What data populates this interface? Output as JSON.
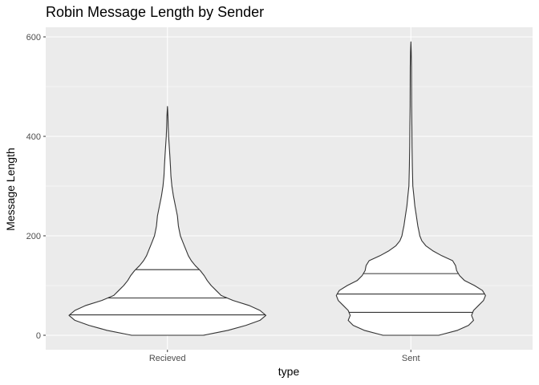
{
  "chart_data": {
    "type": "violin",
    "title": "Robin Message Length by Sender",
    "xlabel": "type",
    "ylabel": "Message Length",
    "categories": [
      "Recieved",
      "Sent"
    ],
    "ylim": [
      -30,
      625
    ],
    "yticks": [
      0,
      200,
      400,
      600
    ],
    "grid": true,
    "quantiles_drawn": [
      0.25,
      0.5,
      0.75
    ],
    "series": [
      {
        "category": "Recieved",
        "min": 0,
        "max": 460,
        "q1": 41,
        "median": 75,
        "q3": 132,
        "density": [
          [
            0,
            0.36
          ],
          [
            10,
            0.61
          ],
          [
            20,
            0.79
          ],
          [
            30,
            0.93
          ],
          [
            40,
            0.99
          ],
          [
            50,
            0.93
          ],
          [
            60,
            0.82
          ],
          [
            70,
            0.66
          ],
          [
            80,
            0.54
          ],
          [
            90,
            0.49
          ],
          [
            100,
            0.44
          ],
          [
            110,
            0.4
          ],
          [
            120,
            0.37
          ],
          [
            130,
            0.33
          ],
          [
            140,
            0.28
          ],
          [
            150,
            0.24
          ],
          [
            160,
            0.21
          ],
          [
            170,
            0.19
          ],
          [
            180,
            0.17
          ],
          [
            190,
            0.15
          ],
          [
            200,
            0.13
          ],
          [
            210,
            0.12
          ],
          [
            220,
            0.11
          ],
          [
            240,
            0.1
          ],
          [
            260,
            0.08
          ],
          [
            280,
            0.06
          ],
          [
            300,
            0.045
          ],
          [
            320,
            0.035
          ],
          [
            340,
            0.03
          ],
          [
            360,
            0.025
          ],
          [
            380,
            0.018
          ],
          [
            400,
            0.012
          ],
          [
            420,
            0.008
          ],
          [
            440,
            0.005
          ],
          [
            460,
            0.0
          ]
        ]
      },
      {
        "category": "Sent",
        "min": 0,
        "max": 590,
        "q1": 46,
        "median": 83,
        "q3": 124,
        "density": [
          [
            0,
            0.28
          ],
          [
            10,
            0.47
          ],
          [
            20,
            0.58
          ],
          [
            30,
            0.63
          ],
          [
            40,
            0.61
          ],
          [
            50,
            0.63
          ],
          [
            60,
            0.68
          ],
          [
            70,
            0.73
          ],
          [
            80,
            0.75
          ],
          [
            90,
            0.72
          ],
          [
            100,
            0.64
          ],
          [
            110,
            0.54
          ],
          [
            120,
            0.49
          ],
          [
            130,
            0.46
          ],
          [
            140,
            0.45
          ],
          [
            150,
            0.42
          ],
          [
            160,
            0.31
          ],
          [
            170,
            0.22
          ],
          [
            180,
            0.15
          ],
          [
            190,
            0.11
          ],
          [
            200,
            0.09
          ],
          [
            210,
            0.08
          ],
          [
            220,
            0.07
          ],
          [
            240,
            0.055
          ],
          [
            260,
            0.04
          ],
          [
            280,
            0.03
          ],
          [
            300,
            0.02
          ],
          [
            340,
            0.015
          ],
          [
            380,
            0.012
          ],
          [
            420,
            0.01
          ],
          [
            460,
            0.008
          ],
          [
            500,
            0.007
          ],
          [
            540,
            0.006
          ],
          [
            570,
            0.004
          ],
          [
            590,
            0.0
          ]
        ]
      }
    ]
  }
}
